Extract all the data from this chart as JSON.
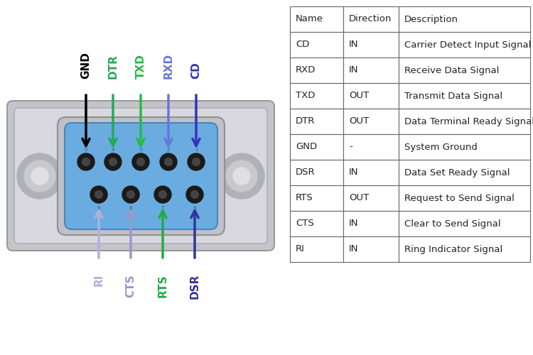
{
  "bg_color": "#ffffff",
  "col_headers": [
    "Name",
    "Direction",
    "Description"
  ],
  "rows": [
    [
      "CD",
      "IN",
      "Carrier Detect Input Signal"
    ],
    [
      "RXD",
      "IN",
      "Receive Data Signal"
    ],
    [
      "TXD",
      "OUT",
      "Transmit Data Signal"
    ],
    [
      "DTR",
      "OUT",
      "Data Terminal Ready Signal"
    ],
    [
      "GND",
      "-",
      "System Ground"
    ],
    [
      "DSR",
      "IN",
      "Data Set Ready Signal"
    ],
    [
      "RTS",
      "OUT",
      "Request to Send Signal"
    ],
    [
      "CTS",
      "IN",
      "Clear to Send Signal"
    ],
    [
      "RI",
      "IN",
      "Ring Indicator Signal"
    ]
  ],
  "shell_color": "#c2c2c8",
  "shell_inner_color": "#d4d4da",
  "body_color": "#6aacdf",
  "pin_color": "#1a1a1a",
  "top_labels": [
    "GND",
    "DTR",
    "TXD",
    "RXD",
    "CD"
  ],
  "top_colors": [
    "#000000",
    "#22aa55",
    "#22bb44",
    "#6677dd",
    "#3333bb"
  ],
  "bot_labels": [
    "RI",
    "CTS",
    "RTS",
    "DSR"
  ],
  "bot_colors": [
    "#b0b0dd",
    "#9999cc",
    "#22aa44",
    "#333399"
  ]
}
